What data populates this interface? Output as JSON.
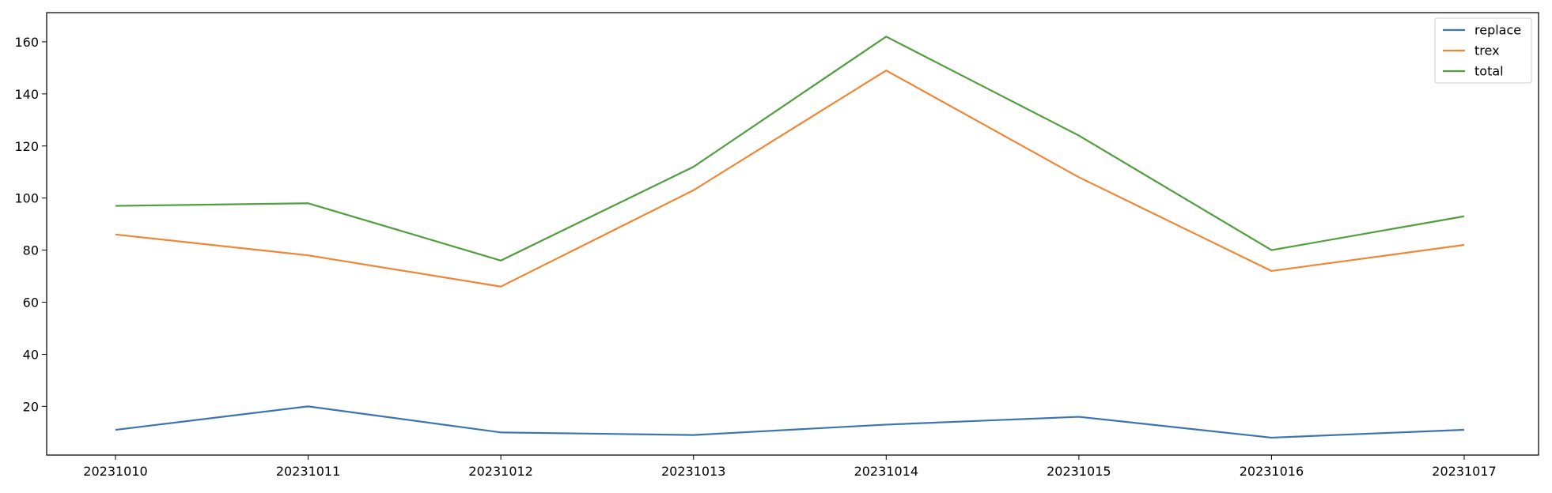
{
  "chart_data": {
    "type": "line",
    "title": "",
    "xlabel": "",
    "ylabel": "",
    "x": [
      "20231010",
      "20231011",
      "20231012",
      "20231013",
      "20231014",
      "20231015",
      "20231016",
      "20231017"
    ],
    "ylim": [
      1.3,
      171.2
    ],
    "yticks": [
      20,
      40,
      60,
      80,
      100,
      120,
      140,
      160
    ],
    "grid": false,
    "legend_position": "upper-right",
    "series": [
      {
        "name": "replace",
        "color": "#3b75af",
        "values": [
          11,
          20,
          10,
          9,
          13,
          16,
          8,
          11
        ]
      },
      {
        "name": "trex",
        "color": "#ef8636",
        "values": [
          86,
          78,
          66,
          103,
          149,
          108,
          72,
          82
        ]
      },
      {
        "name": "total",
        "color": "#519e3e",
        "values": [
          97,
          98,
          76,
          112,
          162,
          124,
          80,
          93
        ]
      }
    ]
  }
}
